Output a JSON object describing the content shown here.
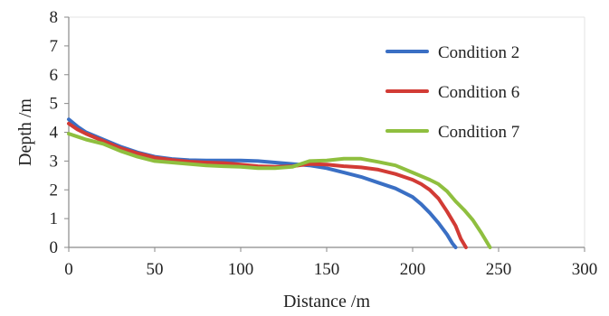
{
  "chart_data": {
    "type": "line",
    "title": "",
    "xlabel": "Distance /m",
    "ylabel": "Depth /m",
    "xlim": [
      0,
      300
    ],
    "ylim": [
      0,
      8
    ],
    "xticks": [
      0,
      50,
      100,
      150,
      200,
      250,
      300
    ],
    "yticks": [
      0,
      1,
      2,
      3,
      4,
      5,
      6,
      7,
      8
    ],
    "grid": false,
    "legend": "top-right",
    "series": [
      {
        "name": "Condition 2",
        "color": "#3a6fc4",
        "x": [
          0,
          5,
          10,
          20,
          30,
          40,
          50,
          60,
          70,
          80,
          90,
          100,
          110,
          120,
          130,
          140,
          150,
          160,
          170,
          180,
          190,
          200,
          205,
          210,
          215,
          220,
          223,
          225
        ],
        "y": [
          4.45,
          4.2,
          4.0,
          3.75,
          3.5,
          3.3,
          3.15,
          3.07,
          3.03,
          3.02,
          3.02,
          3.02,
          3.0,
          2.95,
          2.9,
          2.85,
          2.75,
          2.6,
          2.45,
          2.25,
          2.05,
          1.75,
          1.5,
          1.2,
          0.85,
          0.45,
          0.15,
          0
        ]
      },
      {
        "name": "Condition 6",
        "color": "#d23b35",
        "x": [
          0,
          5,
          10,
          20,
          30,
          40,
          50,
          60,
          70,
          80,
          90,
          100,
          110,
          120,
          130,
          140,
          150,
          160,
          170,
          180,
          190,
          200,
          205,
          210,
          215,
          220,
          225,
          228,
          231
        ],
        "y": [
          4.3,
          4.1,
          3.95,
          3.7,
          3.45,
          3.27,
          3.12,
          3.04,
          2.98,
          2.95,
          2.93,
          2.88,
          2.82,
          2.8,
          2.82,
          2.9,
          2.88,
          2.82,
          2.78,
          2.7,
          2.55,
          2.35,
          2.2,
          2.0,
          1.7,
          1.25,
          0.75,
          0.3,
          0
        ]
      },
      {
        "name": "Condition 7",
        "color": "#8fbf3f",
        "x": [
          0,
          5,
          10,
          20,
          30,
          40,
          50,
          60,
          70,
          80,
          90,
          100,
          110,
          120,
          130,
          140,
          150,
          160,
          170,
          180,
          190,
          200,
          210,
          215,
          220,
          225,
          230,
          235,
          240,
          243,
          245
        ],
        "y": [
          3.95,
          3.85,
          3.75,
          3.6,
          3.35,
          3.15,
          3.0,
          2.95,
          2.9,
          2.85,
          2.82,
          2.8,
          2.75,
          2.75,
          2.8,
          3.0,
          3.02,
          3.08,
          3.08,
          2.97,
          2.85,
          2.6,
          2.35,
          2.2,
          1.95,
          1.6,
          1.3,
          0.95,
          0.5,
          0.2,
          0
        ]
      }
    ]
  }
}
